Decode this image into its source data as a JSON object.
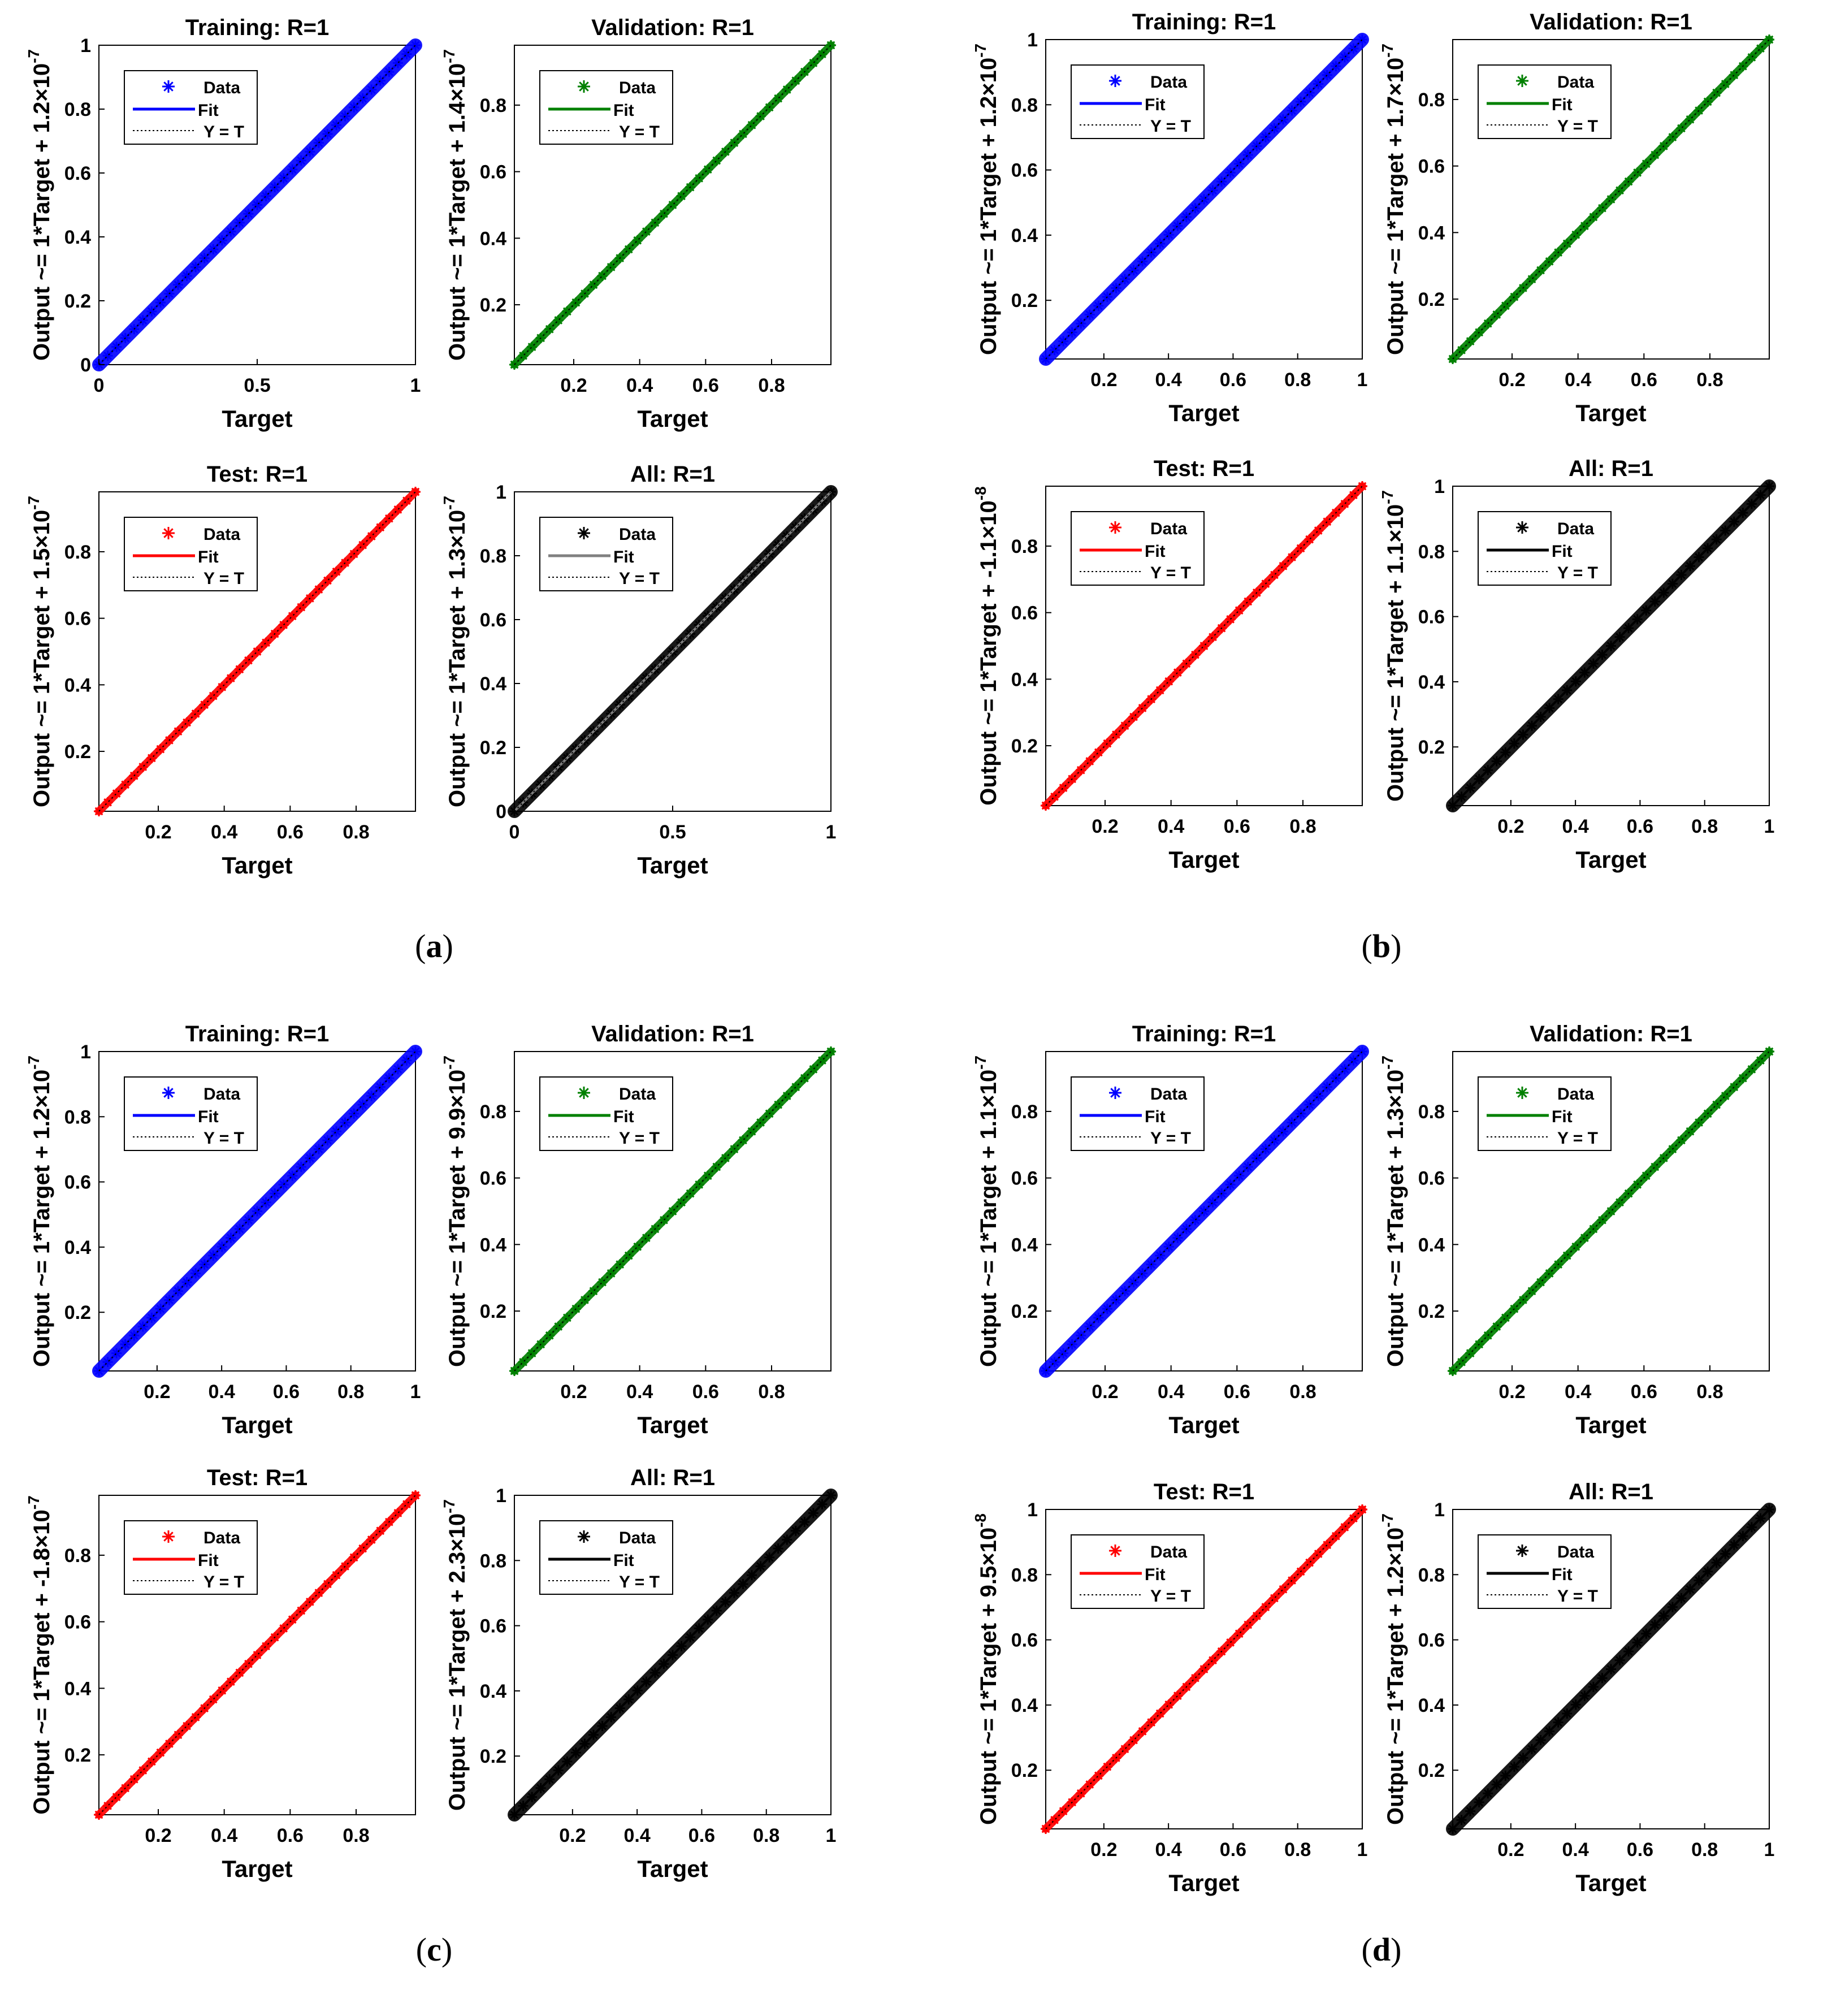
{
  "figure": {
    "panels": [
      {
        "id": "a",
        "label": "a"
      },
      {
        "id": "b",
        "label": "b"
      },
      {
        "id": "c",
        "label": "c"
      },
      {
        "id": "d",
        "label": "d"
      }
    ],
    "legend": {
      "data": "Data",
      "fit": "Fit",
      "yt": "Y = T"
    },
    "colors": {
      "training": "#0000ff",
      "validation": "#008000",
      "test": "#ff0000",
      "all": "#000000",
      "all_fit_gray": "#808080",
      "axis": "#000000"
    }
  },
  "chart_data": [
    {
      "panel": "a",
      "type": "scatter",
      "subplot": "Training",
      "title": "Training: R=1",
      "xlabel": "Target",
      "ylabel": "Output ~= 1*Target + 1.2×10^-7",
      "ylabel_main": "Output ~= 1*Target + 1.2×10",
      "ylabel_exp": "-7",
      "xlim": [
        0,
        1
      ],
      "ylim": [
        0,
        1
      ],
      "xticks": [
        "0",
        "0.5",
        "1"
      ],
      "yticks": [
        "0",
        "0.2",
        "0.4",
        "0.6",
        "0.8",
        "1"
      ],
      "R": 1,
      "slope": 1,
      "intercept": 1.2e-07,
      "series": [
        {
          "name": "Data",
          "x_range": [
            0,
            1
          ]
        },
        {
          "name": "Fit"
        },
        {
          "name": "Y = T"
        }
      ]
    },
    {
      "panel": "a",
      "type": "scatter",
      "subplot": "Validation",
      "title": "Validation: R=1",
      "xlabel": "Target",
      "ylabel": "Output ~= 1*Target + 1.4×10^-7",
      "ylabel_main": "Output ~= 1*Target + 1.4×10",
      "ylabel_exp": "-7",
      "xlim": [
        0.02,
        0.98
      ],
      "ylim": [
        0.02,
        0.98
      ],
      "xticks": [
        "0.2",
        "0.4",
        "0.6",
        "0.8"
      ],
      "yticks": [
        "0.2",
        "0.4",
        "0.6",
        "0.8"
      ],
      "R": 1,
      "slope": 1,
      "intercept": 1.4e-07,
      "series": [
        {
          "name": "Data",
          "x_range": [
            0.02,
            0.98
          ]
        },
        {
          "name": "Fit"
        },
        {
          "name": "Y = T"
        }
      ]
    },
    {
      "panel": "a",
      "type": "scatter",
      "subplot": "Test",
      "title": "Test: R=1",
      "xlabel": "Target",
      "ylabel": "Output ~= 1*Target + 1.5×10^-7",
      "ylabel_main": "Output ~= 1*Target + 1.5×10",
      "ylabel_exp": "-7",
      "xlim": [
        0.02,
        0.98
      ],
      "ylim": [
        0.02,
        0.98
      ],
      "xticks": [
        "0.2",
        "0.4",
        "0.6",
        "0.8"
      ],
      "yticks": [
        "0.2",
        "0.4",
        "0.6",
        "0.8"
      ],
      "R": 1,
      "slope": 1,
      "intercept": 1.5e-07,
      "series": [
        {
          "name": "Data",
          "x_range": [
            0.02,
            0.98
          ]
        },
        {
          "name": "Fit"
        },
        {
          "name": "Y = T"
        }
      ]
    },
    {
      "panel": "a",
      "type": "scatter",
      "subplot": "All",
      "title": "All: R=1",
      "xlabel": "Target",
      "ylabel": "Output ~= 1*Target + 1.3×10^-7",
      "ylabel_main": "Output ~= 1*Target + 1.3×10",
      "ylabel_exp": "-7",
      "xlim": [
        0,
        1
      ],
      "ylim": [
        0,
        1
      ],
      "xticks": [
        "0",
        "0.5",
        "1"
      ],
      "yticks": [
        "0",
        "0.2",
        "0.4",
        "0.6",
        "0.8",
        "1"
      ],
      "R": 1,
      "slope": 1,
      "intercept": 1.3e-07,
      "series": [
        {
          "name": "Data",
          "x_range": [
            0,
            1
          ]
        },
        {
          "name": "Fit"
        },
        {
          "name": "Y = T"
        }
      ]
    },
    {
      "panel": "b",
      "type": "scatter",
      "subplot": "Training",
      "title": "Training: R=1",
      "xlabel": "Target",
      "ylabel": "Output ~= 1*Target + 1.2×10^-7",
      "ylabel_main": "Output ~= 1*Target + 1.2×10",
      "ylabel_exp": "-7",
      "xlim": [
        0.02,
        1
      ],
      "ylim": [
        0.02,
        1
      ],
      "xticks": [
        "0.2",
        "0.4",
        "0.6",
        "0.8",
        "1"
      ],
      "yticks": [
        "0.2",
        "0.4",
        "0.6",
        "0.8",
        "1"
      ],
      "R": 1,
      "slope": 1,
      "intercept": 1.2e-07,
      "series": [
        {
          "name": "Data",
          "x_range": [
            0.02,
            1
          ]
        },
        {
          "name": "Fit"
        },
        {
          "name": "Y = T"
        }
      ]
    },
    {
      "panel": "b",
      "type": "scatter",
      "subplot": "Validation",
      "title": "Validation: R=1",
      "xlabel": "Target",
      "ylabel": "Output ~= 1*Target + 1.7×10^-7",
      "ylabel_main": "Output ~= 1*Target + 1.7×10",
      "ylabel_exp": "-7",
      "xlim": [
        0.02,
        0.98
      ],
      "ylim": [
        0.02,
        0.98
      ],
      "xticks": [
        "0.2",
        "0.4",
        "0.6",
        "0.8"
      ],
      "yticks": [
        "0.2",
        "0.4",
        "0.6",
        "0.8"
      ],
      "R": 1,
      "slope": 1,
      "intercept": 1.7e-07,
      "series": [
        {
          "name": "Data",
          "x_range": [
            0.02,
            0.98
          ]
        },
        {
          "name": "Fit"
        },
        {
          "name": "Y = T"
        }
      ]
    },
    {
      "panel": "b",
      "type": "scatter",
      "subplot": "Test",
      "title": "Test: R=1",
      "xlabel": "Target",
      "ylabel": "Output ~= 1*Target + -1.1×10^-8",
      "ylabel_main": "Output ~= 1*Target + -1.1×10",
      "ylabel_exp": "-8",
      "xlim": [
        0.02,
        0.98
      ],
      "ylim": [
        0.02,
        0.98
      ],
      "xticks": [
        "0.2",
        "0.4",
        "0.6",
        "0.8"
      ],
      "yticks": [
        "0.2",
        "0.4",
        "0.6",
        "0.8"
      ],
      "R": 1,
      "slope": 1,
      "intercept": -1.1e-08,
      "series": [
        {
          "name": "Data",
          "x_range": [
            0.02,
            0.98
          ]
        },
        {
          "name": "Fit"
        },
        {
          "name": "Y = T"
        }
      ]
    },
    {
      "panel": "b",
      "type": "scatter",
      "subplot": "All",
      "title": "All: R=1",
      "xlabel": "Target",
      "ylabel": "Output ~= 1*Target + 1.1×10^-7",
      "ylabel_main": "Output ~= 1*Target + 1.1×10",
      "ylabel_exp": "-7",
      "xlim": [
        0.02,
        1
      ],
      "ylim": [
        0.02,
        1
      ],
      "xticks": [
        "0.2",
        "0.4",
        "0.6",
        "0.8",
        "1"
      ],
      "yticks": [
        "0.2",
        "0.4",
        "0.6",
        "0.8",
        "1"
      ],
      "R": 1,
      "slope": 1,
      "intercept": 1.1e-07,
      "series": [
        {
          "name": "Data",
          "x_range": [
            0.02,
            1
          ]
        },
        {
          "name": "Fit"
        },
        {
          "name": "Y = T"
        }
      ]
    },
    {
      "panel": "c",
      "type": "scatter",
      "subplot": "Training",
      "title": "Training: R=1",
      "xlabel": "Target",
      "ylabel": "Output ~= 1*Target + 1.2×10^-7",
      "ylabel_main": "Output ~= 1*Target + 1.2×10",
      "ylabel_exp": "-7",
      "xlim": [
        0.02,
        1
      ],
      "ylim": [
        0.02,
        1
      ],
      "xticks": [
        "0.2",
        "0.4",
        "0.6",
        "0.8",
        "1"
      ],
      "yticks": [
        "0.2",
        "0.4",
        "0.6",
        "0.8",
        "1"
      ],
      "R": 1,
      "slope": 1,
      "intercept": 1.2e-07,
      "series": [
        {
          "name": "Data",
          "x_range": [
            0.02,
            1
          ]
        },
        {
          "name": "Fit"
        },
        {
          "name": "Y = T"
        }
      ]
    },
    {
      "panel": "c",
      "type": "scatter",
      "subplot": "Validation",
      "title": "Validation: R=1",
      "xlabel": "Target",
      "ylabel": "Output ~= 1*Target + 9.9×10^-7",
      "ylabel_main": "Output ~= 1*Target + 9.9×10",
      "ylabel_exp": "-7",
      "xlim": [
        0.02,
        0.98
      ],
      "ylim": [
        0.02,
        0.98
      ],
      "xticks": [
        "0.2",
        "0.4",
        "0.6",
        "0.8"
      ],
      "yticks": [
        "0.2",
        "0.4",
        "0.6",
        "0.8"
      ],
      "R": 1,
      "slope": 1,
      "intercept": 9.9e-07,
      "series": [
        {
          "name": "Data",
          "x_range": [
            0.02,
            0.98
          ]
        },
        {
          "name": "Fit"
        },
        {
          "name": "Y = T"
        }
      ]
    },
    {
      "panel": "c",
      "type": "scatter",
      "subplot": "Test",
      "title": "Test: R=1",
      "xlabel": "Target",
      "ylabel": "Output ~= 1*Target + -1.8×10^-7",
      "ylabel_main": "Output ~= 1*Target + -1.8×10",
      "ylabel_exp": "-7",
      "xlim": [
        0.02,
        0.98
      ],
      "ylim": [
        0.02,
        0.98
      ],
      "xticks": [
        "0.2",
        "0.4",
        "0.6",
        "0.8"
      ],
      "yticks": [
        "0.2",
        "0.4",
        "0.6",
        "0.8"
      ],
      "R": 1,
      "slope": 1,
      "intercept": -1.8e-07,
      "series": [
        {
          "name": "Data",
          "x_range": [
            0.02,
            0.98
          ]
        },
        {
          "name": "Fit"
        },
        {
          "name": "Y = T"
        }
      ]
    },
    {
      "panel": "c",
      "type": "scatter",
      "subplot": "All",
      "title": "All: R=1",
      "xlabel": "Target",
      "ylabel": "Output ~= 1*Target + 2.3×10^-7",
      "ylabel_main": "Output ~= 1*Target + 2.3×10",
      "ylabel_exp": "-7",
      "xlim": [
        0.02,
        1
      ],
      "ylim": [
        0.02,
        1
      ],
      "xticks": [
        "0.2",
        "0.4",
        "0.6",
        "0.8",
        "1"
      ],
      "yticks": [
        "0.2",
        "0.4",
        "0.6",
        "0.8",
        "1"
      ],
      "R": 1,
      "slope": 1,
      "intercept": 2.3e-07,
      "series": [
        {
          "name": "Data",
          "x_range": [
            0.02,
            1
          ]
        },
        {
          "name": "Fit"
        },
        {
          "name": "Y = T"
        }
      ]
    },
    {
      "panel": "d",
      "type": "scatter",
      "subplot": "Training",
      "title": "Training: R=1",
      "xlabel": "Target",
      "ylabel": "Output ~= 1*Target + 1.1×10^-7",
      "ylabel_main": "Output ~= 1*Target + 1.1×10",
      "ylabel_exp": "-7",
      "xlim": [
        0.02,
        0.98
      ],
      "ylim": [
        0.02,
        0.98
      ],
      "xticks": [
        "0.2",
        "0.4",
        "0.6",
        "0.8"
      ],
      "yticks": [
        "0.2",
        "0.4",
        "0.6",
        "0.8"
      ],
      "R": 1,
      "slope": 1,
      "intercept": 1.1e-07,
      "series": [
        {
          "name": "Data",
          "x_range": [
            0.02,
            0.98
          ]
        },
        {
          "name": "Fit"
        },
        {
          "name": "Y = T"
        }
      ]
    },
    {
      "panel": "d",
      "type": "scatter",
      "subplot": "Validation",
      "title": "Validation: R=1",
      "xlabel": "Target",
      "ylabel": "Output ~= 1*Target + 1.3×10^-7",
      "ylabel_main": "Output ~= 1*Target + 1.3×10",
      "ylabel_exp": "-7",
      "xlim": [
        0.02,
        0.98
      ],
      "ylim": [
        0.02,
        0.98
      ],
      "xticks": [
        "0.2",
        "0.4",
        "0.6",
        "0.8"
      ],
      "yticks": [
        "0.2",
        "0.4",
        "0.6",
        "0.8"
      ],
      "R": 1,
      "slope": 1,
      "intercept": 1.3e-07,
      "series": [
        {
          "name": "Data",
          "x_range": [
            0.02,
            0.98
          ]
        },
        {
          "name": "Fit"
        },
        {
          "name": "Y = T"
        }
      ]
    },
    {
      "panel": "d",
      "type": "scatter",
      "subplot": "Test",
      "title": "Test: R=1",
      "xlabel": "Target",
      "ylabel": "Output ~= 1*Target + 9.5×10^-8",
      "ylabel_main": "Output ~= 1*Target + 9.5×10",
      "ylabel_exp": "-8",
      "xlim": [
        0.02,
        1
      ],
      "ylim": [
        0.02,
        1
      ],
      "xticks": [
        "0.2",
        "0.4",
        "0.6",
        "0.8",
        "1"
      ],
      "yticks": [
        "0.2",
        "0.4",
        "0.6",
        "0.8",
        "1"
      ],
      "R": 1,
      "slope": 1,
      "intercept": 9.5e-08,
      "series": [
        {
          "name": "Data",
          "x_range": [
            0.02,
            1
          ]
        },
        {
          "name": "Fit"
        },
        {
          "name": "Y = T"
        }
      ]
    },
    {
      "panel": "d",
      "type": "scatter",
      "subplot": "All",
      "title": "All: R=1",
      "xlabel": "Target",
      "ylabel": "Output ~= 1*Target + 1.2×10^-7",
      "ylabel_main": "Output ~= 1*Target + 1.2×10",
      "ylabel_exp": "-7",
      "xlim": [
        0.02,
        1
      ],
      "ylim": [
        0.02,
        1
      ],
      "xticks": [
        "0.2",
        "0.4",
        "0.6",
        "0.8",
        "1"
      ],
      "yticks": [
        "0.2",
        "0.4",
        "0.6",
        "0.8",
        "1"
      ],
      "R": 1,
      "slope": 1,
      "intercept": 1.2e-07,
      "series": [
        {
          "name": "Data",
          "x_range": [
            0.02,
            1
          ]
        },
        {
          "name": "Fit"
        },
        {
          "name": "Y = T"
        }
      ]
    }
  ]
}
